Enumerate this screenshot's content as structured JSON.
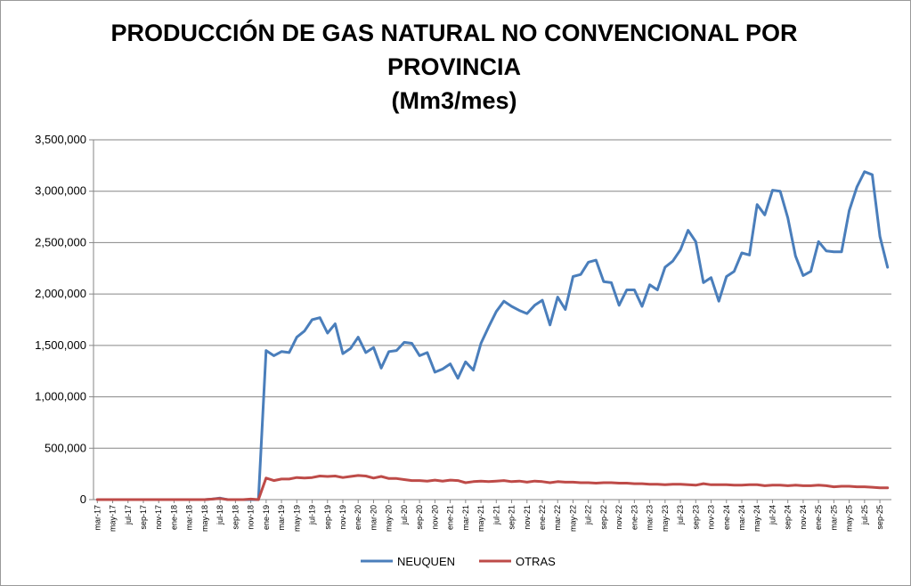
{
  "chart_data": {
    "type": "line",
    "title_lines": [
      "PRODUCCIÓN DE GAS NATURAL NO CONVENCIONAL POR",
      "PROVINCIA",
      "(Mm3/mes)"
    ],
    "ylim": [
      0,
      3500000
    ],
    "yticks": [
      0,
      500000,
      1000000,
      1500000,
      2000000,
      2500000,
      3000000,
      3500000
    ],
    "ytick_labels": [
      "0",
      "500,000",
      "1,000,000",
      "1,500,000",
      "2,000,000",
      "2,500,000",
      "3,000,000",
      "3,500,000"
    ],
    "x": [
      "mar-17",
      "abr-17",
      "may-17",
      "jun-17",
      "jul-17",
      "ago-17",
      "sep-17",
      "oct-17",
      "nov-17",
      "dic-17",
      "ene-18",
      "feb-18",
      "mar-18",
      "abr-18",
      "may-18",
      "jun-18",
      "jul-18",
      "ago-18",
      "sep-18",
      "oct-18",
      "nov-18",
      "dic-18",
      "ene-19",
      "feb-19",
      "mar-19",
      "abr-19",
      "may-19",
      "jun-19",
      "jul-19",
      "ago-19",
      "sep-19",
      "oct-19",
      "nov-19",
      "dic-19",
      "ene-20",
      "feb-20",
      "mar-20",
      "abr-20",
      "may-20",
      "jun-20",
      "jul-20",
      "ago-20",
      "sep-20",
      "oct-20",
      "nov-20",
      "dic-20",
      "ene-21",
      "feb-21",
      "mar-21",
      "abr-21",
      "may-21",
      "jun-21",
      "jul-21",
      "ago-21",
      "sep-21",
      "oct-21",
      "nov-21",
      "dic-21",
      "ene-22",
      "feb-22",
      "mar-22",
      "abr-22",
      "may-22",
      "jun-22",
      "jul-22",
      "ago-22",
      "sep-22",
      "oct-22",
      "nov-22",
      "dic-22",
      "ene-23",
      "feb-23",
      "mar-23",
      "abr-23",
      "may-23",
      "jun-23",
      "jul-23",
      "ago-23",
      "sep-23",
      "oct-23",
      "nov-23",
      "dic-23",
      "ene-24",
      "feb-24",
      "mar-24",
      "abr-24",
      "may-24",
      "jun-24",
      "jul-24",
      "ago-24",
      "sep-24",
      "oct-24",
      "nov-24",
      "dic-24",
      "ene-25",
      "feb-25",
      "mar-25",
      "abr-25",
      "may-25",
      "jun-25",
      "jul-25",
      "ago-25",
      "sep-25",
      "oct-25"
    ],
    "x_tick_labels": [
      "mar-17",
      "may-17",
      "jul-17",
      "sep-17",
      "nov-17",
      "ene-18",
      "mar-18",
      "may-18",
      "jul-18",
      "sep-18",
      "nov-18",
      "ene-19",
      "mar-19",
      "may-19",
      "jul-19",
      "sep-19",
      "nov-19",
      "ene-20",
      "mar-20",
      "may-20",
      "jul-20",
      "sep-20",
      "nov-20",
      "ene-21",
      "mar-21",
      "may-21",
      "jul-21",
      "sep-21",
      "nov-21",
      "ene-22",
      "mar-22",
      "may-22",
      "jul-22",
      "sep-22",
      "nov-22",
      "ene-23",
      "mar-23",
      "may-23",
      "jul-23",
      "sep-23",
      "nov-23",
      "ene-24",
      "mar-24",
      "may-24",
      "jul-24",
      "sep-24",
      "nov-24",
      "ene-25",
      "mar-25",
      "may-25",
      "jul-25",
      "sep-25"
    ],
    "series": [
      {
        "name": "NEUQUEN",
        "color": "#4a7ebb",
        "values": [
          0,
          0,
          0,
          0,
          0,
          0,
          0,
          0,
          0,
          0,
          0,
          0,
          0,
          0,
          0,
          5000,
          15000,
          0,
          0,
          0,
          0,
          0,
          1450000,
          1400000,
          1440000,
          1430000,
          1580000,
          1640000,
          1750000,
          1770000,
          1620000,
          1710000,
          1420000,
          1470000,
          1580000,
          1430000,
          1480000,
          1280000,
          1440000,
          1450000,
          1530000,
          1520000,
          1400000,
          1430000,
          1240000,
          1270000,
          1320000,
          1180000,
          1340000,
          1260000,
          1520000,
          1680000,
          1830000,
          1930000,
          1880000,
          1840000,
          1810000,
          1890000,
          1940000,
          1700000,
          1970000,
          1850000,
          2170000,
          2190000,
          2310000,
          2330000,
          2120000,
          2110000,
          1890000,
          2040000,
          2040000,
          1880000,
          2090000,
          2040000,
          2260000,
          2320000,
          2430000,
          2620000,
          2510000,
          2110000,
          2160000,
          1930000,
          2170000,
          2220000,
          2400000,
          2380000,
          2870000,
          2770000,
          3010000,
          3000000,
          2740000,
          2370000,
          2180000,
          2220000,
          2510000,
          2420000,
          2410000,
          2410000,
          2810000,
          3040000,
          3190000,
          3160000,
          2560000,
          2260000
        ]
      },
      {
        "name": "OTRAS",
        "color": "#be4b48",
        "values": [
          0,
          0,
          0,
          0,
          0,
          0,
          0,
          0,
          0,
          0,
          0,
          0,
          0,
          0,
          0,
          5000,
          10000,
          0,
          0,
          0,
          5000,
          0,
          210000,
          185000,
          200000,
          200000,
          215000,
          210000,
          215000,
          230000,
          225000,
          230000,
          215000,
          225000,
          235000,
          230000,
          210000,
          225000,
          205000,
          205000,
          195000,
          185000,
          185000,
          180000,
          190000,
          180000,
          190000,
          185000,
          165000,
          175000,
          180000,
          175000,
          180000,
          185000,
          175000,
          180000,
          170000,
          180000,
          175000,
          165000,
          175000,
          170000,
          170000,
          165000,
          165000,
          160000,
          165000,
          165000,
          160000,
          160000,
          155000,
          155000,
          150000,
          150000,
          145000,
          150000,
          150000,
          145000,
          140000,
          155000,
          145000,
          145000,
          145000,
          140000,
          140000,
          145000,
          145000,
          135000,
          140000,
          140000,
          135000,
          140000,
          135000,
          135000,
          140000,
          135000,
          125000,
          130000,
          130000,
          125000,
          125000,
          120000,
          115000,
          115000
        ]
      }
    ],
    "legend": {
      "position": "bottom",
      "entries": [
        "NEUQUEN",
        "OTRAS"
      ]
    },
    "grid": "horizontal"
  }
}
